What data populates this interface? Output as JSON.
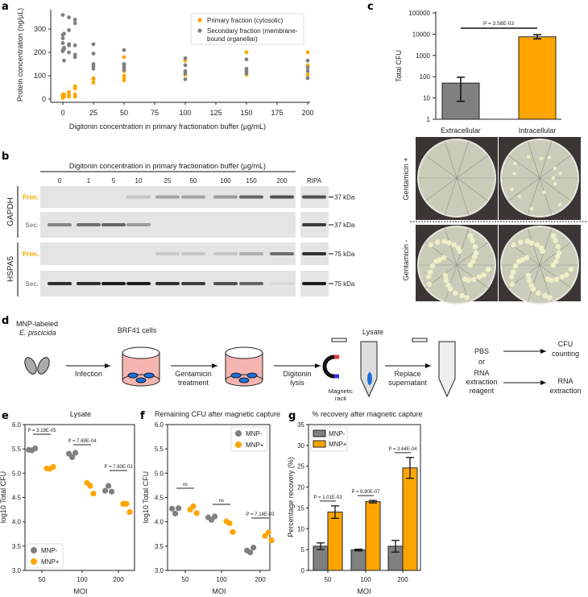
{
  "panels": {
    "a": "a",
    "b": "b",
    "c": "c",
    "d": "d",
    "e": "e",
    "f": "f",
    "g": "g"
  },
  "colors": {
    "primary": "#FFA500",
    "secondary": "#808080"
  },
  "chart_data": [
    {
      "id": "a",
      "type": "scatter",
      "xlabel": "Digitonin concentration in primary fractionation buffer (µg/mL)",
      "ylabel": "Protein concentration (ng/µL)",
      "xlim": [
        0,
        200
      ],
      "ylim": [
        0,
        370
      ],
      "xticks": [
        0,
        25,
        50,
        75,
        100,
        125,
        150,
        175,
        200
      ],
      "yticks": [
        0,
        100,
        200,
        300
      ],
      "legend": {
        "placement": "top-right",
        "entries": [
          "Primary fraction (cytosolic)",
          "Secondary fraction (membrane-",
          "bound organellar)"
        ]
      },
      "series": [
        {
          "name": "Primary fraction (cytosolic)",
          "color": "#FFA500",
          "points": [
            [
              0,
              5
            ],
            [
              0,
              15
            ],
            [
              0,
              20
            ],
            [
              1,
              10
            ],
            [
              1,
              20
            ],
            [
              5,
              10
            ],
            [
              5,
              15
            ],
            [
              5,
              25
            ],
            [
              5,
              30
            ],
            [
              10,
              10
            ],
            [
              10,
              20
            ],
            [
              10,
              45
            ],
            [
              10,
              55
            ],
            [
              25,
              70
            ],
            [
              25,
              85
            ],
            [
              25,
              90
            ],
            [
              50,
              80
            ],
            [
              50,
              90
            ],
            [
              50,
              100
            ],
            [
              50,
              120
            ],
            [
              50,
              180
            ],
            [
              100,
              105
            ],
            [
              100,
              165
            ],
            [
              150,
              105
            ],
            [
              150,
              200
            ],
            [
              200,
              105
            ],
            [
              200,
              145
            ],
            [
              200,
              200
            ]
          ]
        },
        {
          "name": "Secondary fraction (membrane-bound organellar)",
          "color": "#808080",
          "points": [
            [
              0,
              205
            ],
            [
              0,
              210
            ],
            [
              0,
              240
            ],
            [
              0,
              260
            ],
            [
              0,
              275
            ],
            [
              0,
              360
            ],
            [
              1,
              165
            ],
            [
              1,
              215
            ],
            [
              1,
              220
            ],
            [
              1,
              280
            ],
            [
              5,
              200
            ],
            [
              5,
              230
            ],
            [
              5,
              235
            ],
            [
              5,
              295
            ],
            [
              5,
              350
            ],
            [
              10,
              180
            ],
            [
              10,
              190
            ],
            [
              10,
              230
            ],
            [
              10,
              325
            ],
            [
              10,
              340
            ],
            [
              25,
              130
            ],
            [
              25,
              140
            ],
            [
              25,
              150
            ],
            [
              25,
              195
            ],
            [
              25,
              235
            ],
            [
              50,
              125
            ],
            [
              50,
              135
            ],
            [
              50,
              145
            ],
            [
              50,
              150
            ],
            [
              50,
              210
            ],
            [
              100,
              85
            ],
            [
              100,
              110
            ],
            [
              100,
              120
            ],
            [
              100,
              145
            ],
            [
              100,
              175
            ],
            [
              150,
              110
            ],
            [
              150,
              120
            ],
            [
              150,
              130
            ],
            [
              150,
              170
            ],
            [
              200,
              90
            ],
            [
              200,
              120
            ],
            [
              200,
              135
            ],
            [
              200,
              165
            ]
          ]
        }
      ]
    },
    {
      "id": "c",
      "type": "bar",
      "yscale": "log",
      "ylabel": "Total CFU",
      "ylim": [
        1,
        100000
      ],
      "yticks": [
        "1",
        "10",
        "100",
        "1000",
        "10000",
        "100000"
      ],
      "categories": [
        "Extracellular",
        "Intracellular"
      ],
      "values": [
        50,
        7500
      ],
      "err_low": [
        7,
        6000
      ],
      "err_high": [
        95,
        9500
      ],
      "colors": [
        "#808080",
        "#FFA500"
      ],
      "annotation": "P = 3.58E-03"
    },
    {
      "id": "e",
      "type": "scatter",
      "title": "Lysate",
      "xlabel": "MOI",
      "ylabel": "log10 Total CFU",
      "ylim": [
        3.0,
        6.0
      ],
      "yticks": [
        "3.0",
        "3.5",
        "4.0",
        "4.5",
        "5.0",
        "5.5",
        "6.0"
      ],
      "categories": [
        "50",
        "100",
        "200"
      ],
      "legend": {
        "placement": "bottom-left"
      },
      "series": [
        {
          "name": "MNP-",
          "color": "#808080",
          "values": [
            [
              5.48,
              5.47,
              5.51
            ],
            [
              5.4,
              5.33,
              5.42
            ],
            [
              4.64,
              4.74,
              4.62
            ]
          ]
        },
        {
          "name": "MNP+",
          "color": "#FFA500",
          "values": [
            [
              5.1,
              5.09,
              5.13
            ],
            [
              4.8,
              4.74,
              4.58
            ],
            [
              4.37,
              4.37,
              4.2
            ]
          ]
        }
      ],
      "annotations": [
        "P = 3.19E-05",
        "P = 7.69E-04",
        "P = 7.60E-03"
      ]
    },
    {
      "id": "f",
      "type": "scatter",
      "title": "Remaining CFU after magnetic capture",
      "xlabel": "MOI",
      "ylabel": "log10 Total CFU",
      "ylim": [
        3.0,
        6.0
      ],
      "yticks": [
        "3.0",
        "3.5",
        "4.0",
        "4.5",
        "5.0",
        "5.5",
        "6.0"
      ],
      "categories": [
        "50",
        "100",
        "200"
      ],
      "legend": {
        "placement": "top-right"
      },
      "series": [
        {
          "name": "MNP-",
          "color": "#808080",
          "values": [
            [
              4.27,
              4.17,
              4.28
            ],
            [
              4.09,
              4.04,
              4.11
            ],
            [
              3.41,
              3.37,
              3.47
            ]
          ]
        },
        {
          "name": "MNP+",
          "color": "#FFA500",
          "values": [
            [
              4.25,
              4.32,
              4.18
            ],
            [
              4.01,
              3.97,
              3.79
            ],
            [
              3.71,
              3.78,
              3.62
            ]
          ]
        }
      ],
      "annotations": [
        "ns",
        "ns",
        "P = 7.14E-03"
      ]
    },
    {
      "id": "g",
      "type": "bar",
      "title": "% recovery after magnetic capture",
      "xlabel": "MOI",
      "ylabel": "Percentage recovery (%)",
      "ylim": [
        0,
        35
      ],
      "yticks": [
        "0",
        "5",
        "10",
        "15",
        "20",
        "25",
        "30",
        "35"
      ],
      "categories": [
        "50",
        "100",
        "200"
      ],
      "legend": {
        "placement": "top-left"
      },
      "series": [
        {
          "name": "MNP-",
          "color": "#808080",
          "values": [
            5.8,
            4.9,
            5.8
          ],
          "err": [
            0.8,
            0.2,
            1.4
          ]
        },
        {
          "name": "MNP+",
          "color": "#FFA500",
          "values": [
            14.0,
            16.5,
            24.6
          ],
          "err": [
            1.5,
            0.3,
            2.5
          ]
        }
      ],
      "annotations": [
        "P = 1.01E-03",
        "P = 6.90E-07",
        "P = 3.64E-04"
      ]
    }
  ],
  "blot": {
    "title": "Digitonin concentration in primary fractionation buffer (µg/mL)",
    "lanes": [
      "0",
      "1",
      "5",
      "10",
      "25",
      "50",
      "100",
      "150",
      "200",
      "RIPA"
    ],
    "proteins": [
      "GAPDH",
      "HSPA5"
    ],
    "rows": [
      {
        "label": "Prim.",
        "color": "#FFA500",
        "marker": "37 kDa",
        "intensity": [
          0,
          0,
          0,
          0.15,
          0.3,
          0.3,
          0.35,
          0.6,
          0.7,
          0.7
        ]
      },
      {
        "label": "Sec.",
        "color": "#8a8a8a",
        "marker": "37 kDa",
        "intensity": [
          0.45,
          0.55,
          0.6,
          0.35,
          0,
          0,
          0,
          0,
          0,
          0.8
        ]
      },
      {
        "label": "Prim.",
        "color": "#FFA500",
        "marker": "75 kDa",
        "intensity": [
          0,
          0,
          0,
          0,
          0.12,
          0.15,
          0.15,
          0.25,
          0.55,
          0.85
        ]
      },
      {
        "label": "Sec.",
        "color": "#8a8a8a",
        "marker": "75 kDa",
        "intensity": [
          0.85,
          0.85,
          0.95,
          0.95,
          0.85,
          0.8,
          0.7,
          0.6,
          0.05,
          0.95
        ]
      }
    ]
  },
  "plates": {
    "rows": [
      "Gentamicin +",
      "Gentamicin -"
    ]
  },
  "diagram": {
    "bacteria_label_1": "MNP-labeled",
    "bacteria_label_2": "E. piscicida",
    "cells_label": "BRF41 cells",
    "step_infection": "Infection",
    "step_gentamicin_1": "Gentamicin",
    "step_gentamicin_2": "treatment",
    "step_digitonin_1": "Digitonin",
    "step_digitonin_2": "lysis",
    "lysate": "Lysate",
    "magnet_1": "Magnetic",
    "magnet_2": "rack",
    "step_replace_1": "Replace",
    "step_replace_2": "supernatant",
    "pbs": "PBS",
    "or": "or",
    "rna_reagent_1": "RNA",
    "rna_reagent_2": "extraction",
    "rna_reagent_3": "reagent",
    "out_cfu_1": "CFU",
    "out_cfu_2": "counting",
    "out_rna_1": "RNA",
    "out_rna_2": "extraction"
  }
}
